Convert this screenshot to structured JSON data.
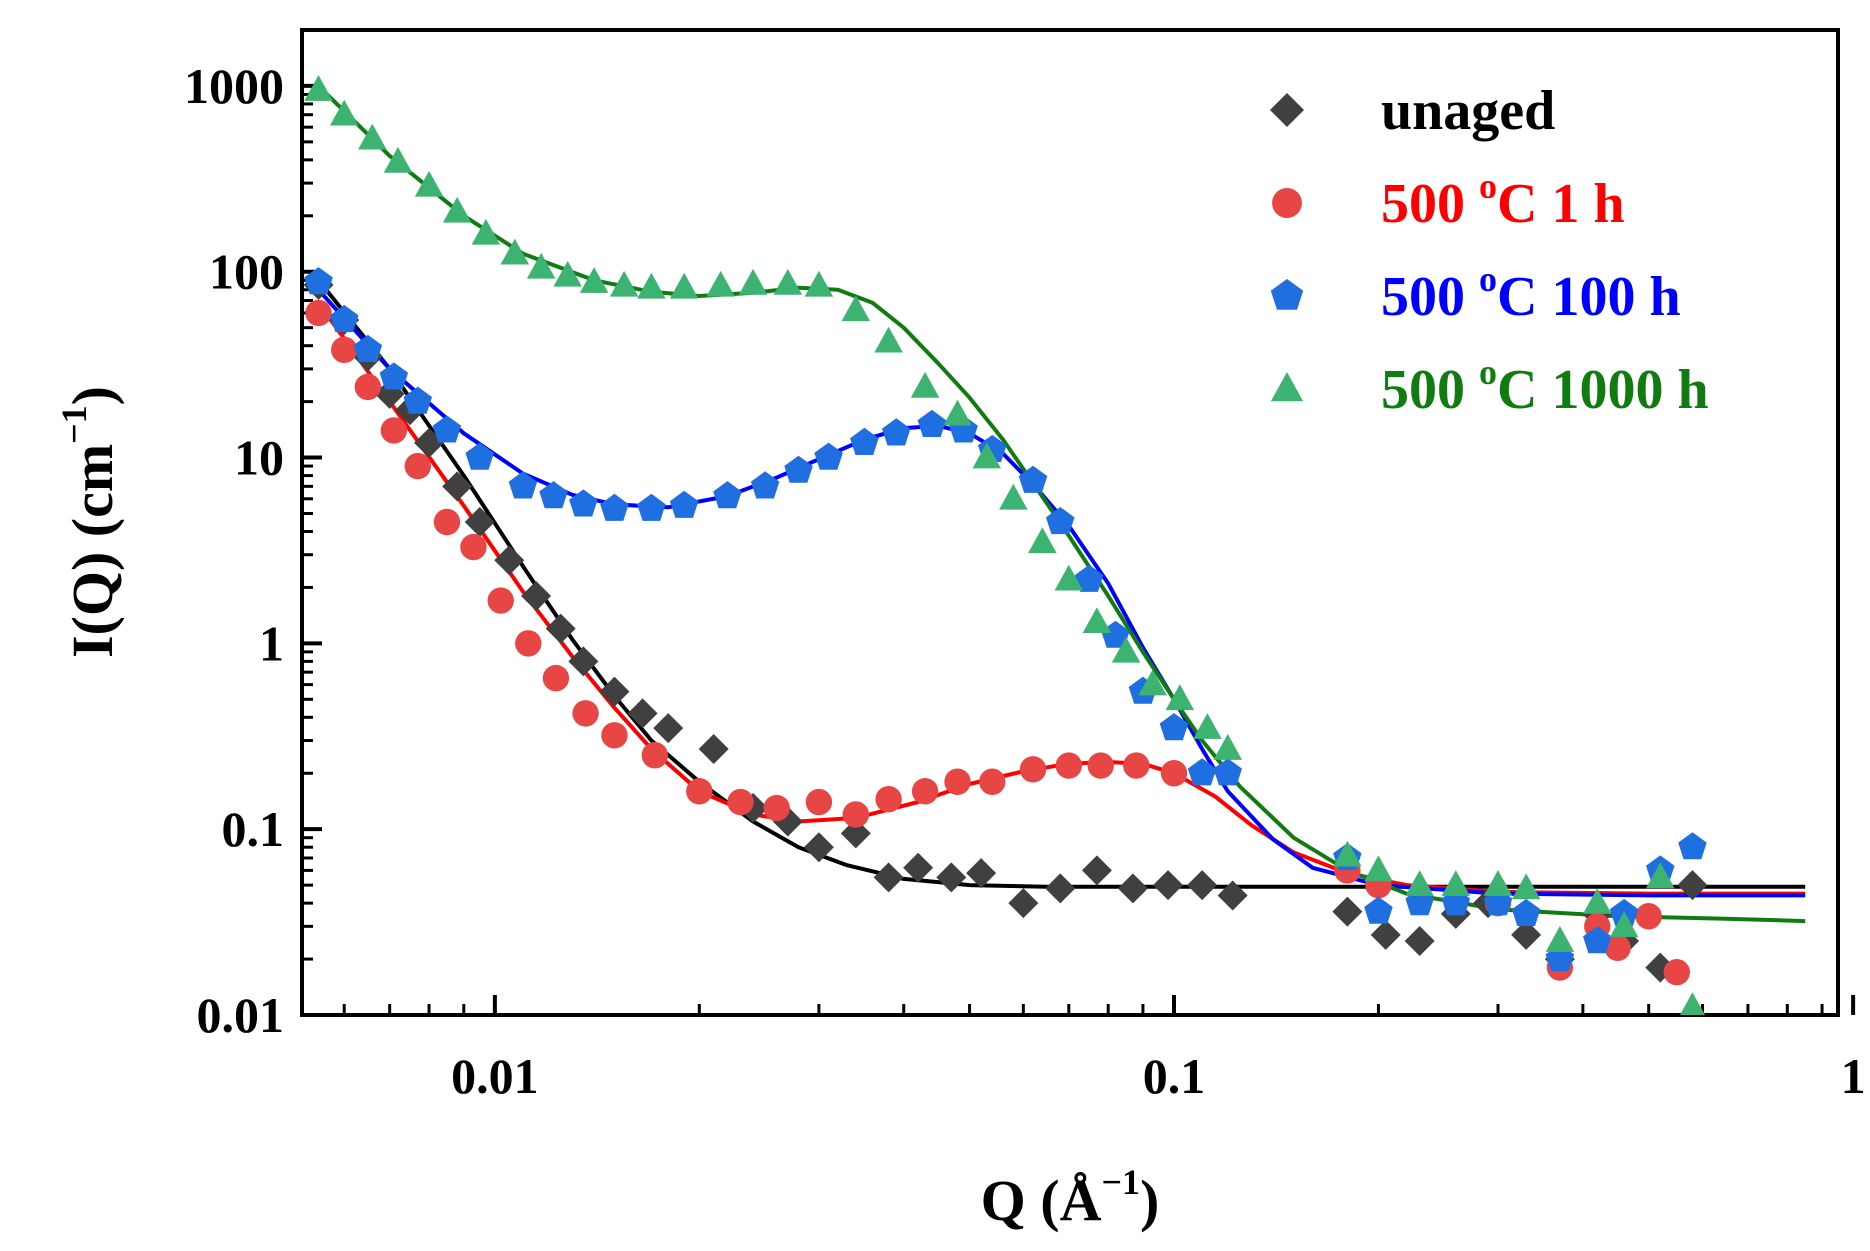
{
  "chart_data": {
    "type": "scatter",
    "title": "",
    "xlabel": {
      "main": "Q (Å",
      "sup": "−1",
      "end": ")"
    },
    "ylabel": {
      "main": "I(Q) (cm",
      "sup": "−1",
      "end": ")"
    },
    "xscale": "log",
    "yscale": "log",
    "xlim": [
      0.0052,
      0.95
    ],
    "ylim": [
      0.01,
      2000
    ],
    "x_ticks": [
      {
        "value": 0.01,
        "label": "0.01"
      },
      {
        "value": 0.1,
        "label": "0.1"
      },
      {
        "value": 1,
        "label": "1"
      }
    ],
    "y_ticks": [
      {
        "value": 0.01,
        "label": "0.01"
      },
      {
        "value": 0.1,
        "label": "0.1"
      },
      {
        "value": 1,
        "label": "1"
      },
      {
        "value": 10,
        "label": "10"
      },
      {
        "value": 100,
        "label": "100"
      },
      {
        "value": 1000,
        "label": "1000"
      }
    ],
    "legend_position": "top-right",
    "series": [
      {
        "name": "unaged",
        "legend": {
          "main": "unaged",
          "sup": "",
          "end": ""
        },
        "color": "#404040",
        "line_color": "#000000",
        "marker": "diamond",
        "points": [
          [
            0.0055,
            85
          ],
          [
            0.006,
            55
          ],
          [
            0.0065,
            35
          ],
          [
            0.007,
            22
          ],
          [
            0.0075,
            18
          ],
          [
            0.008,
            12
          ],
          [
            0.0088,
            7
          ],
          [
            0.0095,
            4.5
          ],
          [
            0.0105,
            2.8
          ],
          [
            0.0115,
            1.8
          ],
          [
            0.0125,
            1.2
          ],
          [
            0.0135,
            0.8
          ],
          [
            0.015,
            0.55
          ],
          [
            0.0165,
            0.42
          ],
          [
            0.018,
            0.35
          ],
          [
            0.021,
            0.27
          ],
          [
            0.024,
            0.13
          ],
          [
            0.027,
            0.11
          ],
          [
            0.03,
            0.08
          ],
          [
            0.034,
            0.095
          ],
          [
            0.038,
            0.055
          ],
          [
            0.042,
            0.062
          ],
          [
            0.047,
            0.055
          ],
          [
            0.052,
            0.058
          ],
          [
            0.06,
            0.04
          ],
          [
            0.068,
            0.048
          ],
          [
            0.077,
            0.06
          ],
          [
            0.087,
            0.048
          ],
          [
            0.098,
            0.05
          ],
          [
            0.11,
            0.05
          ],
          [
            0.122,
            0.044
          ],
          [
            0.18,
            0.036
          ],
          [
            0.205,
            0.027
          ],
          [
            0.23,
            0.025
          ],
          [
            0.26,
            0.035
          ],
          [
            0.29,
            0.04
          ],
          [
            0.33,
            0.027
          ],
          [
            0.37,
            0.02
          ],
          [
            0.42,
            0.035
          ],
          [
            0.46,
            0.025
          ],
          [
            0.52,
            0.018
          ],
          [
            0.58,
            0.05
          ]
        ],
        "fit": [
          [
            0.0055,
            90
          ],
          [
            0.007,
            30
          ],
          [
            0.009,
            8
          ],
          [
            0.011,
            2.6
          ],
          [
            0.013,
            1.05
          ],
          [
            0.015,
            0.52
          ],
          [
            0.017,
            0.3
          ],
          [
            0.02,
            0.18
          ],
          [
            0.024,
            0.11
          ],
          [
            0.028,
            0.08
          ],
          [
            0.033,
            0.064
          ],
          [
            0.04,
            0.054
          ],
          [
            0.05,
            0.05
          ],
          [
            0.065,
            0.049
          ],
          [
            0.1,
            0.049
          ],
          [
            0.3,
            0.049
          ],
          [
            0.85,
            0.049
          ]
        ]
      },
      {
        "name": "500 ºC 1 h",
        "legend": {
          "main": "500 ",
          "sup": "o",
          "end": "C 1 h"
        },
        "color": "#e84545",
        "line_color": "#ff0000",
        "marker": "circle",
        "points": [
          [
            0.0055,
            60
          ],
          [
            0.006,
            38
          ],
          [
            0.0065,
            24
          ],
          [
            0.0071,
            14
          ],
          [
            0.0077,
            9
          ],
          [
            0.0085,
            4.5
          ],
          [
            0.0093,
            3.3
          ],
          [
            0.0102,
            1.7
          ],
          [
            0.0112,
            1.0
          ],
          [
            0.0123,
            0.65
          ],
          [
            0.0136,
            0.42
          ],
          [
            0.015,
            0.32
          ],
          [
            0.0172,
            0.25
          ],
          [
            0.02,
            0.16
          ],
          [
            0.023,
            0.14
          ],
          [
            0.026,
            0.13
          ],
          [
            0.03,
            0.14
          ],
          [
            0.034,
            0.12
          ],
          [
            0.038,
            0.145
          ],
          [
            0.043,
            0.16
          ],
          [
            0.048,
            0.18
          ],
          [
            0.054,
            0.18
          ],
          [
            0.062,
            0.21
          ],
          [
            0.07,
            0.22
          ],
          [
            0.078,
            0.22
          ],
          [
            0.088,
            0.22
          ],
          [
            0.1,
            0.2
          ],
          [
            0.18,
            0.06
          ],
          [
            0.2,
            0.05
          ],
          [
            0.3,
            0.04
          ],
          [
            0.37,
            0.018
          ],
          [
            0.42,
            0.03
          ],
          [
            0.45,
            0.023
          ],
          [
            0.5,
            0.034
          ],
          [
            0.55,
            0.017
          ]
        ],
        "fit": [
          [
            0.0055,
            68
          ],
          [
            0.007,
            20
          ],
          [
            0.009,
            5.5
          ],
          [
            0.011,
            1.9
          ],
          [
            0.013,
            0.85
          ],
          [
            0.015,
            0.45
          ],
          [
            0.017,
            0.27
          ],
          [
            0.02,
            0.16
          ],
          [
            0.024,
            0.12
          ],
          [
            0.028,
            0.11
          ],
          [
            0.034,
            0.115
          ],
          [
            0.042,
            0.14
          ],
          [
            0.05,
            0.175
          ],
          [
            0.06,
            0.205
          ],
          [
            0.07,
            0.225
          ],
          [
            0.08,
            0.23
          ],
          [
            0.09,
            0.225
          ],
          [
            0.1,
            0.2
          ],
          [
            0.115,
            0.15
          ],
          [
            0.13,
            0.105
          ],
          [
            0.15,
            0.075
          ],
          [
            0.18,
            0.058
          ],
          [
            0.22,
            0.05
          ],
          [
            0.3,
            0.046
          ],
          [
            0.5,
            0.045
          ],
          [
            0.85,
            0.045
          ]
        ]
      },
      {
        "name": "500 ºC 100 h",
        "legend": {
          "main": "500 ",
          "sup": "o",
          "end": "C 100 h"
        },
        "color": "#1f6fe0",
        "line_color": "#0000ff",
        "marker": "pentagon",
        "points": [
          [
            0.0055,
            88
          ],
          [
            0.006,
            55
          ],
          [
            0.0065,
            38
          ],
          [
            0.0071,
            27
          ],
          [
            0.0077,
            20
          ],
          [
            0.0085,
            14
          ],
          [
            0.0095,
            10
          ],
          [
            0.011,
            7
          ],
          [
            0.0122,
            6.2
          ],
          [
            0.0135,
            5.6
          ],
          [
            0.015,
            5.3
          ],
          [
            0.017,
            5.3
          ],
          [
            0.019,
            5.5
          ],
          [
            0.022,
            6.2
          ],
          [
            0.025,
            7
          ],
          [
            0.028,
            8.5
          ],
          [
            0.031,
            10
          ],
          [
            0.035,
            12
          ],
          [
            0.039,
            13.5
          ],
          [
            0.044,
            15
          ],
          [
            0.049,
            14
          ],
          [
            0.054,
            11
          ],
          [
            0.062,
            7.5
          ],
          [
            0.068,
            4.5
          ],
          [
            0.075,
            2.2
          ],
          [
            0.082,
            1.1
          ],
          [
            0.09,
            0.55
          ],
          [
            0.1,
            0.35
          ],
          [
            0.11,
            0.2
          ],
          [
            0.12,
            0.2
          ],
          [
            0.18,
            0.07
          ],
          [
            0.2,
            0.036
          ],
          [
            0.23,
            0.04
          ],
          [
            0.26,
            0.04
          ],
          [
            0.3,
            0.04
          ],
          [
            0.33,
            0.035
          ],
          [
            0.37,
            0.02
          ],
          [
            0.42,
            0.025
          ],
          [
            0.46,
            0.035
          ],
          [
            0.52,
            0.06
          ],
          [
            0.58,
            0.08
          ]
        ],
        "fit": [
          [
            0.0055,
            80
          ],
          [
            0.007,
            30
          ],
          [
            0.009,
            13.5
          ],
          [
            0.011,
            8.2
          ],
          [
            0.013,
            6.3
          ],
          [
            0.015,
            5.6
          ],
          [
            0.018,
            5.4
          ],
          [
            0.022,
            6.2
          ],
          [
            0.026,
            7.8
          ],
          [
            0.03,
            9.8
          ],
          [
            0.035,
            12.5
          ],
          [
            0.04,
            14.4
          ],
          [
            0.045,
            14.8
          ],
          [
            0.05,
            13.5
          ],
          [
            0.056,
            10.5
          ],
          [
            0.062,
            7.2
          ],
          [
            0.07,
            4.3
          ],
          [
            0.08,
            2.1
          ],
          [
            0.09,
            0.95
          ],
          [
            0.1,
            0.5
          ],
          [
            0.11,
            0.27
          ],
          [
            0.12,
            0.16
          ],
          [
            0.14,
            0.088
          ],
          [
            0.16,
            0.062
          ],
          [
            0.2,
            0.05
          ],
          [
            0.3,
            0.045
          ],
          [
            0.5,
            0.044
          ],
          [
            0.85,
            0.044
          ]
        ]
      },
      {
        "name": "500 ºC 1000 h",
        "legend": {
          "main": "500 ",
          "sup": "o",
          "end": "C 1000 h"
        },
        "color": "#3cb371",
        "line_color": "#107c10",
        "marker": "triangle",
        "points": [
          [
            0.0055,
            950
          ],
          [
            0.006,
            700
          ],
          [
            0.0066,
            520
          ],
          [
            0.0072,
            390
          ],
          [
            0.008,
            290
          ],
          [
            0.0088,
            210
          ],
          [
            0.0097,
            160
          ],
          [
            0.0107,
            125
          ],
          [
            0.0117,
            105
          ],
          [
            0.0128,
            95
          ],
          [
            0.014,
            88
          ],
          [
            0.0155,
            84
          ],
          [
            0.017,
            82
          ],
          [
            0.019,
            82
          ],
          [
            0.0215,
            84
          ],
          [
            0.024,
            86
          ],
          [
            0.027,
            86
          ],
          [
            0.03,
            84
          ],
          [
            0.034,
            62
          ],
          [
            0.038,
            42
          ],
          [
            0.043,
            24
          ],
          [
            0.048,
            17
          ],
          [
            0.053,
            10
          ],
          [
            0.058,
            6
          ],
          [
            0.064,
            3.5
          ],
          [
            0.07,
            2.2
          ],
          [
            0.077,
            1.3
          ],
          [
            0.085,
            0.9
          ],
          [
            0.093,
            0.6
          ],
          [
            0.102,
            0.5
          ],
          [
            0.112,
            0.35
          ],
          [
            0.12,
            0.27
          ],
          [
            0.18,
            0.072
          ],
          [
            0.2,
            0.06
          ],
          [
            0.23,
            0.05
          ],
          [
            0.26,
            0.05
          ],
          [
            0.3,
            0.05
          ],
          [
            0.33,
            0.048
          ],
          [
            0.37,
            0.025
          ],
          [
            0.42,
            0.04
          ],
          [
            0.46,
            0.03
          ],
          [
            0.52,
            0.055
          ],
          [
            0.58,
            0.011
          ]
        ],
        "fit": [
          [
            0.0055,
            1000
          ],
          [
            0.007,
            420
          ],
          [
            0.009,
            200
          ],
          [
            0.011,
            125
          ],
          [
            0.014,
            90
          ],
          [
            0.017,
            78
          ],
          [
            0.02,
            74
          ],
          [
            0.024,
            77
          ],
          [
            0.028,
            82
          ],
          [
            0.032,
            80
          ],
          [
            0.036,
            68
          ],
          [
            0.04,
            50
          ],
          [
            0.045,
            32
          ],
          [
            0.05,
            21
          ],
          [
            0.056,
            12.5
          ],
          [
            0.062,
            7.3
          ],
          [
            0.07,
            3.8
          ],
          [
            0.08,
            1.8
          ],
          [
            0.09,
            0.9
          ],
          [
            0.1,
            0.5
          ],
          [
            0.11,
            0.3
          ],
          [
            0.125,
            0.17
          ],
          [
            0.15,
            0.09
          ],
          [
            0.18,
            0.06
          ],
          [
            0.22,
            0.045
          ],
          [
            0.3,
            0.037
          ],
          [
            0.45,
            0.034
          ],
          [
            0.65,
            0.033
          ],
          [
            0.85,
            0.032
          ]
        ]
      }
    ]
  }
}
